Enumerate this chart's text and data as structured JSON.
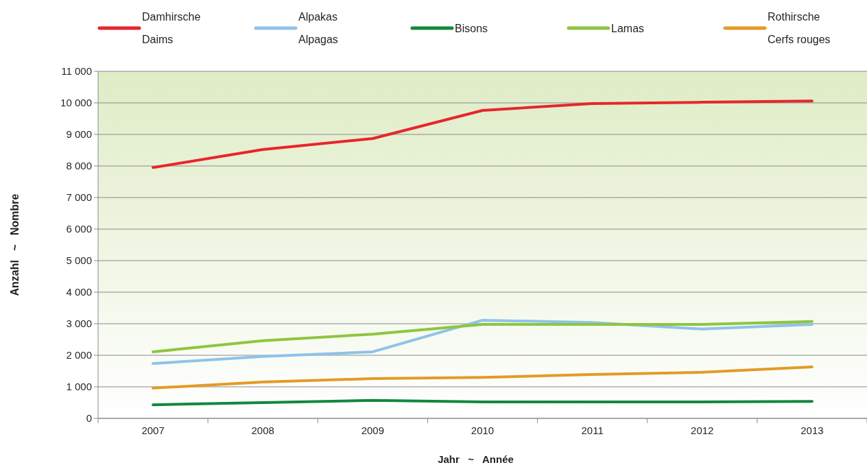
{
  "chart_data": {
    "type": "line",
    "xlabel": "Jahr   ~   Année",
    "ylabel": "Anzahl   ~   Nombre",
    "categories": [
      "2007",
      "2008",
      "2009",
      "2010",
      "2011",
      "2012",
      "2013"
    ],
    "ylim": [
      0,
      11000
    ],
    "yticks": [
      {
        "value": 0,
        "label": "0"
      },
      {
        "value": 1000,
        "label": "1 000"
      },
      {
        "value": 2000,
        "label": "2 000"
      },
      {
        "value": 3000,
        "label": "3 000"
      },
      {
        "value": 4000,
        "label": "4 000"
      },
      {
        "value": 5000,
        "label": "5 000"
      },
      {
        "value": 6000,
        "label": "6 000"
      },
      {
        "value": 7000,
        "label": "7 000"
      },
      {
        "value": 8000,
        "label": "8 000"
      },
      {
        "value": 9000,
        "label": "9 000"
      },
      {
        "value": 10000,
        "label": "10 000"
      },
      {
        "value": 11000,
        "label": "11 000"
      }
    ],
    "grid": "y",
    "legend": "top",
    "marker": "none",
    "line_style": "solid",
    "series": [
      {
        "name": "Damhirsche\nDaims",
        "color": "#e8262b",
        "values": [
          7950,
          8520,
          8870,
          9760,
          9980,
          10020,
          10060
        ]
      },
      {
        "name": "Alpakas\nAlpagas",
        "color": "#8ec3ea",
        "values": [
          1740,
          1960,
          2110,
          3110,
          3040,
          2830,
          2980
        ]
      },
      {
        "name": "Bisons",
        "color": "#12883d",
        "values": [
          430,
          500,
          570,
          520,
          520,
          520,
          540
        ]
      },
      {
        "name": "Lamas",
        "color": "#8dc63f",
        "values": [
          2110,
          2460,
          2670,
          2980,
          2980,
          2980,
          3070
        ]
      },
      {
        "name": "Rothirsche\nCerfs rouges",
        "color": "#e39b25",
        "values": [
          960,
          1150,
          1260,
          1300,
          1390,
          1460,
          1630
        ]
      }
    ]
  }
}
